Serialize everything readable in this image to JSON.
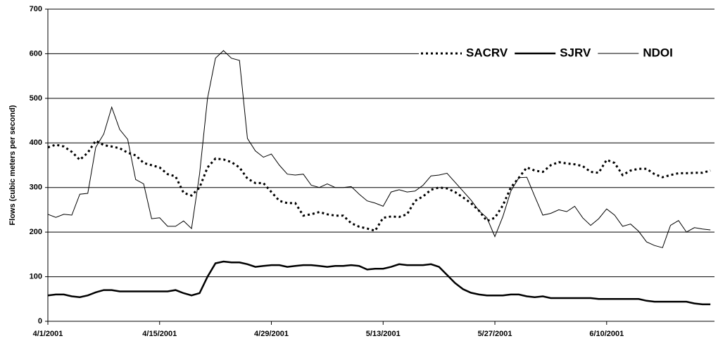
{
  "chart_data": {
    "type": "line",
    "y_label": "Flows (cubic meters per second)",
    "categories": [
      "4/1/2001",
      null,
      null,
      null,
      null,
      null,
      null,
      null,
      null,
      null,
      null,
      null,
      null,
      null,
      "4/15/2001",
      null,
      null,
      null,
      null,
      null,
      null,
      null,
      null,
      null,
      null,
      null,
      null,
      null,
      "4/29/2001",
      null,
      null,
      null,
      null,
      null,
      null,
      null,
      null,
      null,
      null,
      null,
      null,
      null,
      "5/13/2001",
      null,
      null,
      null,
      null,
      null,
      null,
      null,
      null,
      null,
      null,
      null,
      null,
      null,
      "5/27/2001",
      null,
      null,
      null,
      null,
      null,
      null,
      null,
      null,
      null,
      null,
      null,
      null,
      null,
      "6/10/2001",
      null,
      null,
      null,
      null,
      null,
      null,
      null,
      null,
      null,
      null,
      null,
      null,
      null
    ],
    "series": [
      {
        "name": "SACRV",
        "color": "#000000",
        "style": "dotted",
        "values": [
          390,
          396,
          392,
          380,
          362,
          378,
          405,
          395,
          392,
          388,
          378,
          372,
          355,
          350,
          345,
          330,
          325,
          288,
          282,
          300,
          345,
          365,
          363,
          357,
          345,
          320,
          310,
          310,
          290,
          270,
          265,
          265,
          237,
          240,
          245,
          240,
          237,
          237,
          220,
          212,
          208,
          203,
          232,
          235,
          234,
          240,
          270,
          280,
          295,
          300,
          298,
          290,
          278,
          265,
          248,
          225,
          232,
          260,
          300,
          322,
          345,
          338,
          335,
          350,
          357,
          354,
          352,
          348,
          335,
          333,
          362,
          355,
          328,
          338,
          342,
          342,
          330,
          323,
          328,
          332,
          332,
          333,
          333,
          338
        ]
      },
      {
        "name": "SJRV",
        "color": "#000000",
        "style": "thick",
        "values": [
          58,
          60,
          60,
          56,
          54,
          58,
          65,
          70,
          70,
          67,
          67,
          67,
          67,
          67,
          67,
          67,
          70,
          63,
          58,
          63,
          100,
          130,
          134,
          132,
          132,
          128,
          122,
          124,
          126,
          126,
          122,
          124,
          126,
          126,
          124,
          122,
          124,
          124,
          126,
          124,
          116,
          118,
          118,
          122,
          128,
          126,
          126,
          126,
          128,
          122,
          104,
          86,
          72,
          64,
          60,
          58,
          58,
          58,
          60,
          60,
          56,
          54,
          56,
          52,
          52,
          52,
          52,
          52,
          52,
          50,
          50,
          50,
          50,
          50,
          50,
          46,
          44,
          44,
          44,
          44,
          44,
          40,
          38,
          38
        ]
      },
      {
        "name": "NDOI",
        "color": "#000000",
        "style": "thin",
        "values": [
          240,
          233,
          240,
          238,
          285,
          287,
          390,
          420,
          480,
          430,
          408,
          318,
          308,
          230,
          232,
          213,
          213,
          225,
          208,
          330,
          500,
          590,
          607,
          590,
          585,
          410,
          382,
          368,
          375,
          350,
          330,
          328,
          330,
          305,
          300,
          308,
          300,
          300,
          302,
          285,
          270,
          265,
          258,
          290,
          295,
          290,
          292,
          305,
          326,
          328,
          332,
          312,
          292,
          272,
          248,
          232,
          190,
          235,
          292,
          322,
          323,
          280,
          238,
          242,
          250,
          246,
          258,
          232,
          215,
          230,
          252,
          238,
          213,
          218,
          202,
          178,
          170,
          165,
          215,
          226,
          200,
          210,
          207,
          205
        ]
      }
    ],
    "ylim": [
      0,
      700
    ],
    "yticks": [
      0,
      100,
      200,
      300,
      400,
      500,
      600,
      700
    ],
    "grid": true,
    "legend": "top-right"
  }
}
